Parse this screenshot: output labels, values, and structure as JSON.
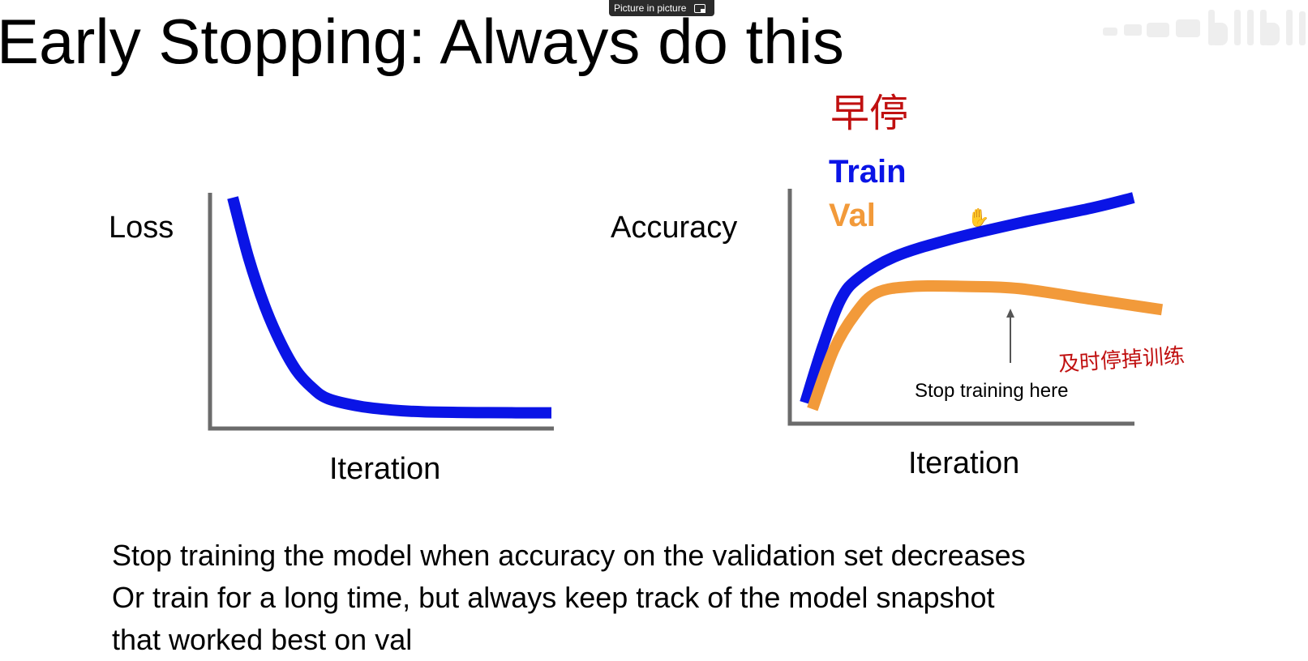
{
  "slide": {
    "title": "Early Stopping: Always do this",
    "handwriting_top": "早停",
    "handwriting_side": "及时停掉训练",
    "bottom_lines": [
      "Stop training the model when accuracy on the validation set decreases",
      "Or train for a long time, but always keep track of the model snapshot",
      "that worked best on val"
    ]
  },
  "pip_tooltip": {
    "label": "Picture in picture",
    "icon": "picture-in-picture-icon"
  },
  "watermark": {
    "icon": "bilibili-logo-icon"
  },
  "cursor": {
    "icon": "hand-cursor-icon"
  },
  "chart_data": [
    {
      "type": "line",
      "ylabel": "Loss",
      "xlabel": "Iteration",
      "series": [
        {
          "color": "#0a14e6",
          "points": [
            [
              0,
              1.0
            ],
            [
              0.05,
              0.72
            ],
            [
              0.1,
              0.5
            ],
            [
              0.15,
              0.33
            ],
            [
              0.2,
              0.2
            ],
            [
              0.25,
              0.12
            ],
            [
              0.3,
              0.07
            ],
            [
              0.4,
              0.035
            ],
            [
              0.5,
              0.018
            ],
            [
              0.6,
              0.01
            ],
            [
              0.8,
              0.006
            ],
            [
              1.0,
              0.005
            ]
          ]
        }
      ]
    },
    {
      "type": "line",
      "ylabel": "Accuracy",
      "xlabel": "Iteration",
      "legend": [
        "Train",
        "Val"
      ],
      "annotation": "Stop training here",
      "series": [
        {
          "name": "Train",
          "color": "#0a14e6",
          "points": [
            [
              0.0,
              0.03
            ],
            [
              0.05,
              0.3
            ],
            [
              0.1,
              0.52
            ],
            [
              0.15,
              0.62
            ],
            [
              0.25,
              0.72
            ],
            [
              0.4,
              0.8
            ],
            [
              0.6,
              0.88
            ],
            [
              0.8,
              0.95
            ],
            [
              0.92,
              1.0
            ]
          ]
        },
        {
          "name": "Val",
          "color": "#f29a3a",
          "points": [
            [
              0.02,
              0.0
            ],
            [
              0.08,
              0.28
            ],
            [
              0.14,
              0.45
            ],
            [
              0.2,
              0.55
            ],
            [
              0.3,
              0.58
            ],
            [
              0.45,
              0.58
            ],
            [
              0.6,
              0.57
            ],
            [
              0.8,
              0.52
            ],
            [
              1.0,
              0.47
            ]
          ]
        }
      ]
    }
  ]
}
